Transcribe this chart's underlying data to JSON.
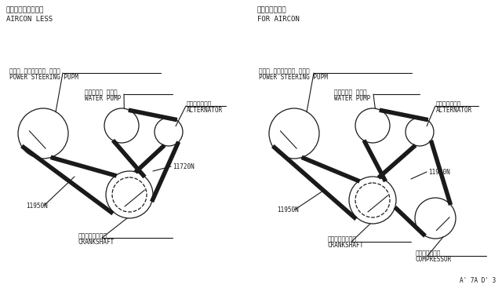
{
  "bg_color": "#ffffff",
  "line_color": "#1a1a1a",
  "title_left_jp": "エアコン　無し仕様",
  "title_left_en": "AIRCON LESS",
  "title_right_jp": "エアコン付仕様",
  "title_right_en": "FOR AIRCON",
  "footer": "A' 7A D' 3",
  "left": {
    "ps_jp": "パワー ステアリング ポンプ",
    "ps_en": "POWER STEERING PUPM",
    "wp_jp": "ウォーター ポンプ",
    "wp_en": "WATER PUMP",
    "alt_jp": "オルタネイター",
    "alt_en": "ALTERNATOR",
    "crank_jp": "クランクシャフト",
    "crank_en": "CRANKSHAFT",
    "belt1": "11950N",
    "belt2": "11720N",
    "ps": [
      55,
      170,
      32
    ],
    "wp": [
      155,
      160,
      22
    ],
    "alt": [
      215,
      168,
      18
    ],
    "crank": [
      165,
      248,
      30
    ],
    "crank_inner_r": 22
  },
  "right": {
    "ps_jp": "パワー ステアリング ポンプ",
    "ps_en": "POWER STEERING PUPM",
    "wp_jp": "ウォーター ポンプ",
    "wp_en": "WATER PUMP",
    "alt_jp": "オルタネイター",
    "alt_en": "ALTERNATOR",
    "crank_jp": "クランクシャフト",
    "crank_en": "CRANKSHAFT",
    "comp_jp": "コンプレッサー",
    "comp_en": "COMPRESSOR",
    "belt1": "11950N",
    "belt2": "11920N",
    "ps": [
      375,
      170,
      32
    ],
    "wp": [
      475,
      160,
      22
    ],
    "alt": [
      535,
      168,
      18
    ],
    "crank": [
      475,
      255,
      30
    ],
    "crank_inner_r": 22,
    "comp": [
      555,
      278,
      26
    ]
  }
}
